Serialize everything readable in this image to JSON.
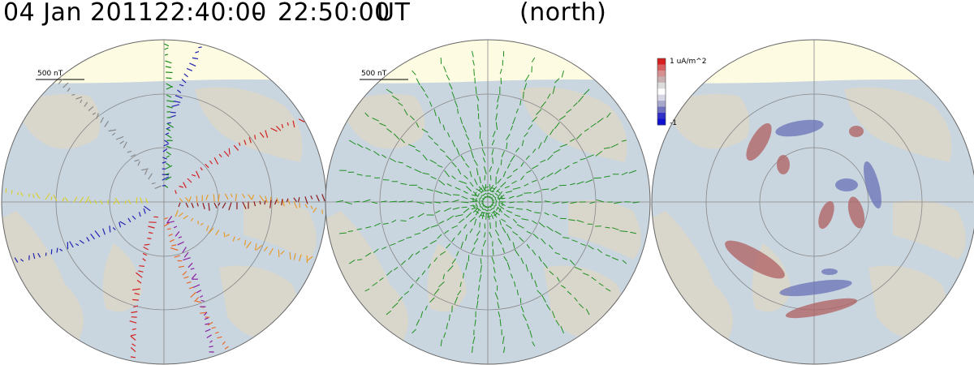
{
  "title": {
    "date": "04 Jan 2011",
    "start": "22:40:00",
    "separator": "-",
    "end": "22:50:00",
    "unit": "UT",
    "hemisphere": "(north)"
  },
  "panels": [
    {
      "scale_label": "500 nT"
    },
    {
      "scale_label": "500 nT"
    },
    {
      "colorbar": {
        "max_label": "1 uA/m^2",
        "min_label": "-1",
        "colors": [
          "#d62020",
          "#d86060",
          "#d69090",
          "#c8b0b0",
          "#dcdcdc",
          "#ffffff",
          "#d6d6e6",
          "#a8a8cc",
          "#7070c0",
          "#3030c8",
          "#1010d0"
        ]
      }
    }
  ],
  "colors": {
    "ocean": "#c9d6e0",
    "land": "#d9d6cc",
    "daylight": "#fdfbe2",
    "ice": "#dceaf8",
    "grid": "#888888",
    "vector_green": "#1f8f1f",
    "current_up": "#b06060",
    "current_down": "#6a72b8"
  }
}
